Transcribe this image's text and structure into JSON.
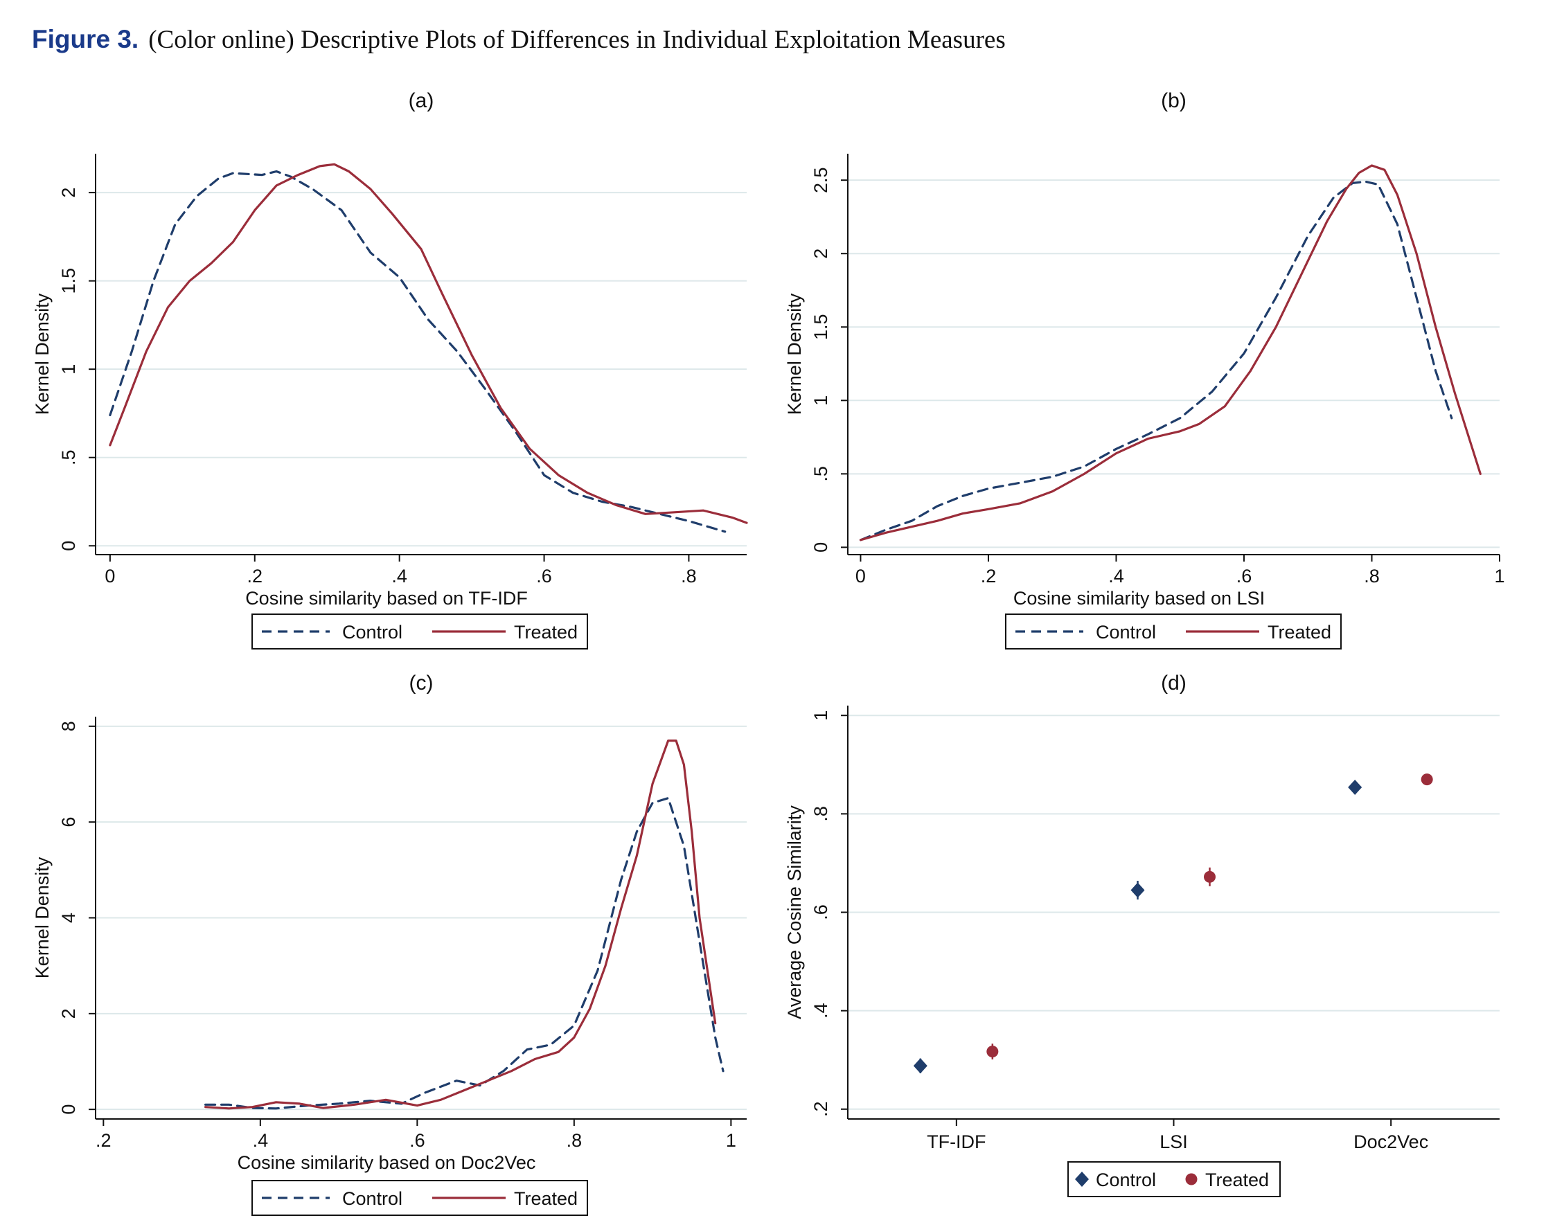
{
  "figure": {
    "label": "Figure 3.",
    "caption": "(Color online) Descriptive Plots of Differences in Individual Exploitation Measures"
  },
  "colors": {
    "control": "#1f3d6b",
    "treated": "#9b2d3a",
    "grid": "#dde8ea",
    "axis": "#111111"
  },
  "chart_data": [
    {
      "type": "line",
      "panel": "(a)",
      "xlabel": "Cosine similarity based on TF-IDF",
      "ylabel": "Kernel Density",
      "xlim": [
        -0.02,
        0.88
      ],
      "ylim": [
        -0.05,
        2.22
      ],
      "xticks": [
        0,
        0.2,
        0.4,
        0.6,
        0.8
      ],
      "xtick_labels": [
        "0",
        ".2",
        ".4",
        ".6",
        ".8"
      ],
      "yticks": [
        0,
        0.5,
        1,
        1.5,
        2
      ],
      "ytick_labels": [
        "0",
        ".5",
        "1",
        "1.5",
        "2"
      ],
      "grid": true,
      "legend": [
        "Control",
        "Treated"
      ],
      "legend_position": "bottom",
      "series": [
        {
          "name": "Control",
          "style": "dashed",
          "x": [
            0,
            0.03,
            0.06,
            0.09,
            0.12,
            0.15,
            0.17,
            0.21,
            0.23,
            0.25,
            0.28,
            0.32,
            0.36,
            0.4,
            0.44,
            0.48,
            0.52,
            0.56,
            0.6,
            0.64,
            0.68,
            0.72,
            0.76,
            0.8,
            0.85
          ],
          "y": [
            0.74,
            1.1,
            1.5,
            1.82,
            1.98,
            2.08,
            2.11,
            2.1,
            2.12,
            2.09,
            2.02,
            1.9,
            1.66,
            1.52,
            1.28,
            1.1,
            0.88,
            0.65,
            0.4,
            0.3,
            0.25,
            0.22,
            0.18,
            0.14,
            0.08
          ]
        },
        {
          "name": "Treated",
          "style": "solid",
          "x": [
            0,
            0.02,
            0.05,
            0.08,
            0.11,
            0.14,
            0.17,
            0.2,
            0.23,
            0.26,
            0.29,
            0.31,
            0.33,
            0.36,
            0.39,
            0.43,
            0.46,
            0.5,
            0.54,
            0.58,
            0.62,
            0.66,
            0.7,
            0.74,
            0.78,
            0.82,
            0.86,
            0.88
          ],
          "y": [
            0.57,
            0.78,
            1.1,
            1.35,
            1.5,
            1.6,
            1.72,
            1.9,
            2.04,
            2.1,
            2.15,
            2.16,
            2.12,
            2.02,
            1.88,
            1.68,
            1.42,
            1.08,
            0.78,
            0.55,
            0.4,
            0.3,
            0.23,
            0.18,
            0.19,
            0.2,
            0.16,
            0.13
          ]
        }
      ]
    },
    {
      "type": "line",
      "panel": "(b)",
      "xlabel": "Cosine similarity based on LSI",
      "ylabel": "Kernel Density",
      "xlim": [
        -0.02,
        1.0
      ],
      "ylim": [
        -0.05,
        2.68
      ],
      "xticks": [
        0,
        0.2,
        0.4,
        0.6,
        0.8,
        1
      ],
      "xtick_labels": [
        "0",
        ".2",
        ".4",
        ".6",
        ".8",
        "1"
      ],
      "yticks": [
        0,
        0.5,
        1,
        1.5,
        2,
        2.5
      ],
      "ytick_labels": [
        "0",
        ".5",
        "1",
        "1.5",
        "2",
        "2.5"
      ],
      "grid": true,
      "legend": [
        "Control",
        "Treated"
      ],
      "legend_position": "bottom",
      "series": [
        {
          "name": "Control",
          "style": "dashed",
          "x": [
            0,
            0.04,
            0.08,
            0.12,
            0.16,
            0.2,
            0.25,
            0.3,
            0.35,
            0.4,
            0.45,
            0.5,
            0.55,
            0.6,
            0.65,
            0.7,
            0.74,
            0.77,
            0.79,
            0.81,
            0.84,
            0.87,
            0.9,
            0.925
          ],
          "y": [
            0.05,
            0.12,
            0.18,
            0.28,
            0.35,
            0.4,
            0.44,
            0.48,
            0.55,
            0.67,
            0.77,
            0.88,
            1.06,
            1.32,
            1.7,
            2.12,
            2.38,
            2.48,
            2.49,
            2.47,
            2.2,
            1.7,
            1.2,
            0.88
          ]
        },
        {
          "name": "Treated",
          "style": "solid",
          "x": [
            0,
            0.04,
            0.08,
            0.12,
            0.16,
            0.2,
            0.25,
            0.3,
            0.35,
            0.4,
            0.45,
            0.5,
            0.53,
            0.57,
            0.61,
            0.65,
            0.69,
            0.73,
            0.76,
            0.78,
            0.8,
            0.82,
            0.84,
            0.87,
            0.9,
            0.93,
            0.97
          ],
          "y": [
            0.05,
            0.1,
            0.14,
            0.18,
            0.23,
            0.26,
            0.3,
            0.38,
            0.5,
            0.64,
            0.74,
            0.79,
            0.84,
            0.96,
            1.2,
            1.5,
            1.86,
            2.22,
            2.44,
            2.55,
            2.6,
            2.57,
            2.4,
            2.0,
            1.5,
            1.05,
            0.5
          ]
        }
      ]
    },
    {
      "type": "line",
      "panel": "(c)",
      "xlabel": "Cosine similarity based on Doc2Vec",
      "ylabel": "Kernel Density",
      "xlim": [
        0.19,
        1.02
      ],
      "ylim": [
        -0.2,
        8.2
      ],
      "xticks": [
        0.2,
        0.4,
        0.6,
        0.8,
        1
      ],
      "xtick_labels": [
        ".2",
        ".4",
        ".6",
        ".8",
        "1"
      ],
      "yticks": [
        0,
        2,
        4,
        6,
        8
      ],
      "ytick_labels": [
        "0",
        "2",
        "4",
        "6",
        "8"
      ],
      "grid": true,
      "legend": [
        "Control",
        "Treated"
      ],
      "legend_position": "bottom",
      "series": [
        {
          "name": "Control",
          "style": "dashed",
          "x": [
            0.33,
            0.36,
            0.39,
            0.42,
            0.46,
            0.5,
            0.54,
            0.58,
            0.61,
            0.65,
            0.68,
            0.71,
            0.74,
            0.77,
            0.8,
            0.83,
            0.86,
            0.88,
            0.9,
            0.92,
            0.94,
            0.96,
            0.98,
            0.99
          ],
          "y": [
            0.1,
            0.1,
            0.03,
            0.02,
            0.08,
            0.12,
            0.18,
            0.12,
            0.35,
            0.6,
            0.5,
            0.8,
            1.25,
            1.35,
            1.75,
            2.9,
            4.8,
            5.8,
            6.4,
            6.5,
            5.5,
            3.5,
            1.5,
            0.8
          ]
        },
        {
          "name": "Treated",
          "style": "solid",
          "x": [
            0.33,
            0.36,
            0.39,
            0.42,
            0.45,
            0.48,
            0.52,
            0.56,
            0.6,
            0.63,
            0.66,
            0.69,
            0.72,
            0.75,
            0.78,
            0.8,
            0.82,
            0.84,
            0.86,
            0.88,
            0.9,
            0.92,
            0.93,
            0.94,
            0.95,
            0.96,
            0.98
          ],
          "y": [
            0.05,
            0.02,
            0.05,
            0.15,
            0.12,
            0.03,
            0.1,
            0.2,
            0.08,
            0.2,
            0.4,
            0.6,
            0.8,
            1.05,
            1.2,
            1.5,
            2.1,
            3.0,
            4.2,
            5.3,
            6.8,
            7.7,
            7.7,
            7.2,
            5.8,
            4.0,
            1.8
          ]
        }
      ]
    },
    {
      "type": "scatter",
      "panel": "(d)",
      "xlabel": "",
      "ylabel": "Average Cosine Similarity",
      "categories": [
        "TF-IDF",
        "LSI",
        "Doc2Vec"
      ],
      "ylim": [
        0.18,
        1.02
      ],
      "yticks": [
        0.2,
        0.4,
        0.6,
        0.8,
        1
      ],
      "ytick_labels": [
        ".2",
        ".4",
        ".6",
        ".8",
        "1"
      ],
      "grid": true,
      "legend": [
        "Control",
        "Treated"
      ],
      "legend_position": "bottom",
      "series": [
        {
          "name": "Control",
          "marker": "diamond",
          "values": [
            0.288,
            0.645,
            0.854
          ],
          "ci_low": [
            0.273,
            0.626,
            0.849
          ],
          "ci_high": [
            0.303,
            0.664,
            0.859
          ]
        },
        {
          "name": "Treated",
          "marker": "circle",
          "values": [
            0.317,
            0.672,
            0.87
          ],
          "ci_low": [
            0.301,
            0.653,
            0.865
          ],
          "ci_high": [
            0.333,
            0.691,
            0.875
          ]
        }
      ]
    }
  ]
}
